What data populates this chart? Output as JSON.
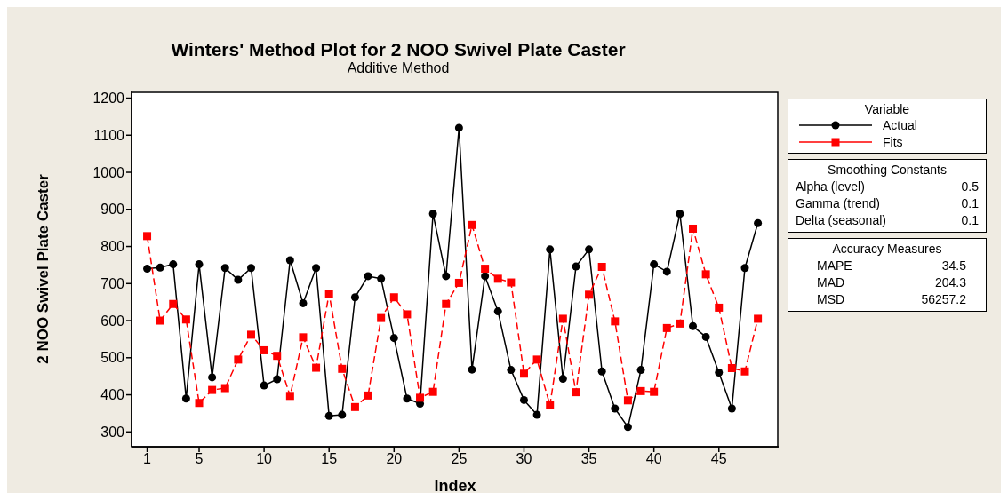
{
  "chart_data": {
    "type": "line",
    "title": "Winters' Method Plot for 2 NOO  Swivel Plate Caster",
    "subtitle": "Additive Method",
    "xlabel": "Index",
    "ylabel": "2 NOO  Swivel Plate Caster",
    "x": [
      1,
      2,
      3,
      4,
      5,
      6,
      7,
      8,
      9,
      10,
      11,
      12,
      13,
      14,
      15,
      16,
      17,
      18,
      19,
      20,
      21,
      22,
      23,
      24,
      25,
      26,
      27,
      28,
      29,
      30,
      31,
      32,
      33,
      34,
      35,
      36,
      37,
      38,
      39,
      40,
      41,
      42,
      43,
      44,
      45,
      46,
      47,
      48
    ],
    "series": [
      {
        "name": "Actual",
        "color": "#000000",
        "marker": "circle",
        "line_style": "solid",
        "values": [
          740,
          743,
          752,
          390,
          752,
          447,
          742,
          710,
          742,
          425,
          442,
          763,
          647,
          742,
          343,
          346,
          663,
          720,
          713,
          553,
          390,
          376,
          888,
          720,
          1120,
          468,
          720,
          625,
          467,
          386,
          346,
          792,
          443,
          746,
          792,
          463,
          363,
          313,
          467,
          752,
          732,
          888,
          585,
          556,
          460,
          363,
          742,
          863
        ]
      },
      {
        "name": "Fits",
        "color": "#ff0000",
        "marker": "square",
        "line_style": "dashed",
        "values": [
          828,
          600,
          645,
          603,
          378,
          413,
          418,
          495,
          562,
          520,
          505,
          397,
          555,
          473,
          673,
          470,
          367,
          398,
          607,
          663,
          617,
          392,
          408,
          645,
          702,
          858,
          740,
          713,
          703,
          457,
          495,
          372,
          605,
          407,
          670,
          745,
          598,
          385,
          410,
          408,
          580,
          592,
          848,
          725,
          635,
          472,
          463,
          605
        ]
      }
    ],
    "xlim": [
      -0.2,
      49.6
    ],
    "xticks": [
      1,
      5,
      10,
      15,
      20,
      25,
      30,
      35,
      40,
      45
    ],
    "ylim": [
      260,
      1218
    ],
    "yticks": [
      300,
      400,
      500,
      600,
      700,
      800,
      900,
      1000,
      1100,
      1200
    ],
    "grid": false,
    "legend": "right",
    "legend_title": "Variable",
    "annotations": [
      "Smoothing Constants",
      "Alpha (level)\t0.5",
      "Gamma (trend)\t0.1",
      "Delta (seasonal)\t0.1",
      "Accuracy Measures",
      "MAPE\t34.5",
      "MAD\t204.3",
      "MSD\t56257.2"
    ]
  }
}
